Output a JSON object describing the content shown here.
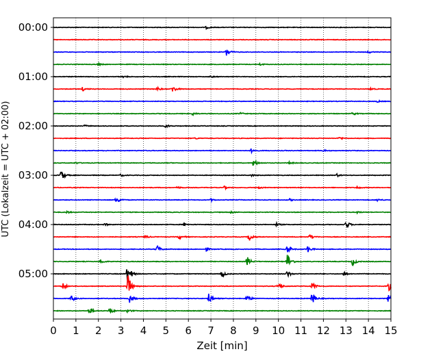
{
  "chart_data": {
    "type": "line",
    "xlabel": "Zeit  [min]",
    "ylabel": "UTC (Lokalzeit = UTC + 02:00)",
    "xlim": [
      0,
      15
    ],
    "x_ticks": [
      0,
      1,
      2,
      3,
      4,
      5,
      6,
      7,
      8,
      9,
      10,
      11,
      12,
      13,
      14,
      15
    ],
    "x_tick_labels": [
      "0",
      "1",
      "2",
      "3",
      "4",
      "5",
      "6",
      "7",
      "8",
      "9",
      "10",
      "11",
      "12",
      "13",
      "14",
      "15"
    ],
    "y_tick_labels": [
      "00:00",
      "01:00",
      "02:00",
      "03:00",
      "04:00",
      "05:00"
    ],
    "minutes_per_line": 15,
    "vertical_grid": "dotted",
    "trace_colors": [
      "#000000",
      "#ff0000",
      "#0000ff",
      "#008000"
    ],
    "series": [
      {
        "start": "00:00",
        "events": [
          [
            6.8,
            0.22
          ]
        ]
      },
      {
        "start": "00:15",
        "events": []
      },
      {
        "start": "00:30",
        "events": [
          [
            7.7,
            0.8
          ],
          [
            14.0,
            0.2
          ]
        ]
      },
      {
        "start": "00:45",
        "events": [
          [
            2.0,
            0.2
          ],
          [
            9.2,
            0.2
          ]
        ]
      },
      {
        "start": "01:00",
        "events": [
          [
            3.1,
            0.2
          ],
          [
            7.0,
            0.15
          ]
        ]
      },
      {
        "start": "01:15",
        "events": [
          [
            1.3,
            0.35
          ],
          [
            4.6,
            0.35
          ],
          [
            5.3,
            0.6
          ],
          [
            14.1,
            0.2
          ]
        ]
      },
      {
        "start": "01:30",
        "events": [
          [
            14.4,
            0.15
          ]
        ]
      },
      {
        "start": "01:45",
        "events": [
          [
            6.2,
            0.25
          ],
          [
            8.3,
            0.2
          ],
          [
            13.3,
            0.25
          ]
        ]
      },
      {
        "start": "02:00",
        "events": [
          [
            1.4,
            0.15
          ],
          [
            5.0,
            0.3
          ]
        ]
      },
      {
        "start": "02:15",
        "events": [
          [
            6.3,
            0.15
          ],
          [
            12.7,
            0.25
          ]
        ]
      },
      {
        "start": "02:30",
        "events": [
          [
            8.8,
            0.35
          ],
          [
            12.0,
            0.15
          ]
        ]
      },
      {
        "start": "02:45",
        "events": [
          [
            1.0,
            0.15
          ],
          [
            8.9,
            0.7
          ],
          [
            10.5,
            0.2
          ]
        ]
      },
      {
        "start": "03:00",
        "events": [
          [
            0.35,
            0.85
          ],
          [
            3.0,
            0.2
          ],
          [
            8.8,
            0.2
          ],
          [
            12.6,
            0.25
          ]
        ]
      },
      {
        "start": "03:15",
        "events": [
          [
            5.5,
            0.2
          ],
          [
            7.6,
            0.25
          ],
          [
            9.1,
            0.2
          ],
          [
            13.5,
            0.2
          ]
        ]
      },
      {
        "start": "03:30",
        "events": [
          [
            2.8,
            0.7
          ],
          [
            7.0,
            0.2
          ],
          [
            10.5,
            0.2
          ],
          [
            14.4,
            0.2
          ]
        ]
      },
      {
        "start": "03:45",
        "events": [
          [
            0.6,
            0.2
          ],
          [
            7.9,
            0.2
          ],
          [
            13.5,
            0.2
          ]
        ]
      },
      {
        "start": "04:00",
        "events": [
          [
            2.3,
            0.2
          ],
          [
            5.8,
            0.2
          ],
          [
            9.9,
            0.3
          ],
          [
            13.0,
            0.8
          ]
        ]
      },
      {
        "start": "04:15",
        "events": [
          [
            4.1,
            0.25
          ],
          [
            5.6,
            0.4
          ],
          [
            8.7,
            0.85
          ],
          [
            11.4,
            0.4
          ]
        ]
      },
      {
        "start": "04:30",
        "events": [
          [
            4.6,
            0.7
          ],
          [
            6.8,
            0.3
          ],
          [
            10.4,
            0.75
          ],
          [
            11.3,
            0.6
          ]
        ]
      },
      {
        "start": "04:45",
        "events": [
          [
            2.1,
            0.4
          ],
          [
            8.6,
            1.0
          ],
          [
            10.4,
            1.5
          ],
          [
            13.3,
            0.7
          ]
        ]
      },
      {
        "start": "05:00",
        "events": [
          [
            3.3,
            2.0
          ],
          [
            7.5,
            0.6
          ],
          [
            10.4,
            0.6
          ],
          [
            12.9,
            0.45
          ]
        ]
      },
      {
        "start": "05:15",
        "events": [
          [
            0.4,
            0.7
          ],
          [
            3.3,
            2.3
          ],
          [
            10.0,
            0.7
          ],
          [
            11.5,
            0.7
          ],
          [
            14.9,
            0.85
          ]
        ]
      },
      {
        "start": "05:30",
        "events": [
          [
            0.8,
            0.6
          ],
          [
            3.4,
            0.8
          ],
          [
            6.9,
            0.9
          ],
          [
            8.6,
            0.7
          ],
          [
            11.5,
            1.2
          ],
          [
            14.9,
            0.8
          ]
        ]
      },
      {
        "start": "05:45",
        "events": [
          [
            1.6,
            0.6
          ],
          [
            2.5,
            0.55
          ],
          [
            3.3,
            0.3
          ]
        ]
      }
    ]
  }
}
